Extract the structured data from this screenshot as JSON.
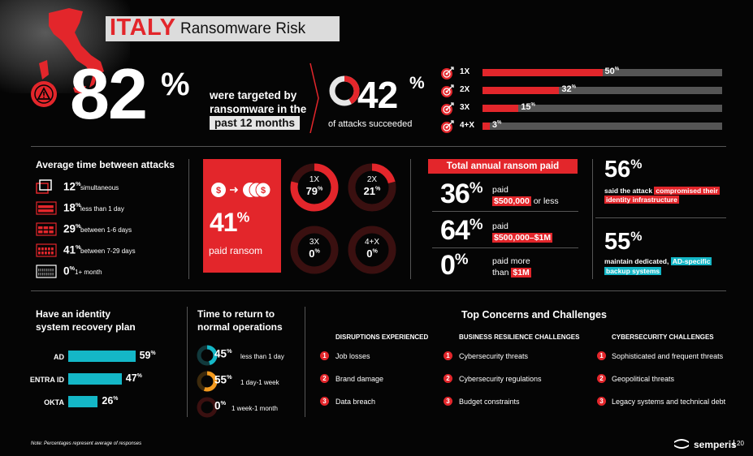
{
  "header": {
    "country": "ITALY",
    "subtitle": "Ransomware Risk"
  },
  "targeted": {
    "value": "82",
    "unit": "%",
    "line1": "were targeted by",
    "line2": "ransomware in the",
    "line3": "past 12 months"
  },
  "succeeded": {
    "value": "42",
    "unit": "%",
    "label": "of attacks succeeded",
    "fraction": 0.42
  },
  "attack_counts": [
    {
      "label": "1X",
      "value": "50",
      "fraction": 0.5
    },
    {
      "label": "2X",
      "value": "32",
      "fraction": 0.32
    },
    {
      "label": "3X",
      "value": "15",
      "fraction": 0.15
    },
    {
      "label": "4+X",
      "value": "3",
      "fraction": 0.03
    }
  ],
  "avg_time": {
    "title": "Average time between attacks",
    "items": [
      {
        "value": "12",
        "unit": "%",
        "desc": "simultaneous"
      },
      {
        "value": "18",
        "unit": "%",
        "desc": "less than 1 day"
      },
      {
        "value": "29",
        "unit": "%",
        "desc": "between 1-6 days"
      },
      {
        "value": "41",
        "unit": "%",
        "desc": "between 7-29 days"
      },
      {
        "value": "0",
        "unit": "%",
        "desc": "1+ month"
      }
    ]
  },
  "paid": {
    "value": "41",
    "unit": "%",
    "label": "paid ransom"
  },
  "paid_times": [
    {
      "label": "1X",
      "value": "79",
      "unit": "%",
      "fraction": 0.79
    },
    {
      "label": "2X",
      "value": "21",
      "unit": "%",
      "fraction": 0.21
    },
    {
      "label": "3X",
      "value": "0",
      "unit": "%",
      "fraction": 0
    },
    {
      "label": "4+X",
      "value": "0",
      "unit": "%",
      "fraction": 0
    }
  ],
  "ransom": {
    "title": "Total annual ransom paid",
    "rows": [
      {
        "value": "36",
        "unit": "%",
        "pre": "paid",
        "highlight": "$500,000",
        "post": " or less"
      },
      {
        "value": "64",
        "unit": "%",
        "pre": "paid",
        "highlight": "$500,000–$1M",
        "post": ""
      },
      {
        "value": "0",
        "unit": "%",
        "pre": "paid more",
        "pre2": "than ",
        "highlight": "$1M",
        "post": ""
      }
    ]
  },
  "compromised": {
    "value": "56",
    "unit": "%",
    "line1_pre": "said the attack ",
    "line1_hl": "compromised their",
    "line2_hl": "identity infrastructure"
  },
  "backup": {
    "value": "55",
    "unit": "%",
    "line1_pre": "maintain dedicated, ",
    "line1_hl": "AD-specific",
    "line2_hl": "backup systems"
  },
  "identity_plan": {
    "title1": "Have an identity",
    "title2": "system recovery plan",
    "rows": [
      {
        "label": "AD",
        "value": "59",
        "unit": "%",
        "fraction": 0.59
      },
      {
        "label": "ENTRA ID",
        "value": "47",
        "unit": "%",
        "fraction": 0.47
      },
      {
        "label": "OKTA",
        "value": "26",
        "unit": "%",
        "fraction": 0.26
      }
    ]
  },
  "return_time": {
    "title1": "Time to return to",
    "title2": "normal operations",
    "rows": [
      {
        "value": "45",
        "unit": "%",
        "desc": "less than 1 day",
        "fraction": 0.45,
        "color": "#14b7c7"
      },
      {
        "value": "55",
        "unit": "%",
        "desc": "1 day-1 week",
        "fraction": 0.55,
        "color": "#f29a1f"
      },
      {
        "value": "0",
        "unit": "%",
        "desc": "1 week-1 month",
        "fraction": 0,
        "color": "#e3262b"
      }
    ]
  },
  "concerns": {
    "title": "Top Concerns and Challenges",
    "columns": [
      {
        "heading": "DISRUPTIONS EXPERIENCED",
        "items": [
          "Job losses",
          "Brand damage",
          "Data breach"
        ]
      },
      {
        "heading": "BUSINESS RESILIENCE CHALLENGES",
        "items": [
          "Cybersecurity threats",
          "Cybersecurity regulations",
          "Budget constraints"
        ]
      },
      {
        "heading": "CYBERSECURITY CHALLENGES",
        "items": [
          "Sophisticated and frequent threats",
          "Geopolitical threats",
          "Legacy systems and technical debt"
        ]
      }
    ],
    "numbers": [
      "1",
      "2",
      "3"
    ]
  },
  "footer": {
    "note": "Note: Percentages represent average of responses",
    "brand": "semperis",
    "page": "20"
  },
  "colors": {
    "red": "#e3262b",
    "teal": "#14b7c7",
    "orange": "#f29a1f",
    "gray": "#555555"
  }
}
